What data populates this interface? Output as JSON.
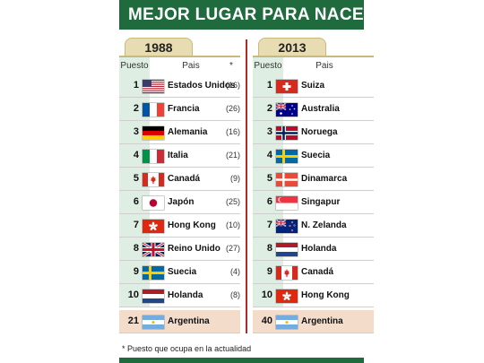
{
  "title": "MEJOR LUGAR PARA NACER",
  "columns": {
    "rank": "Puesto",
    "country": "Pais",
    "current": "*"
  },
  "panels": [
    {
      "year": "1988",
      "rows": [
        {
          "rank": "1",
          "country": "Estados Unidos",
          "current": "(16)",
          "flag": "usa-flag-icon"
        },
        {
          "rank": "2",
          "country": "Francia",
          "current": "(26)",
          "flag": "france-flag-icon"
        },
        {
          "rank": "3",
          "country": "Alemania",
          "current": "(16)",
          "flag": "germany-flag-icon"
        },
        {
          "rank": "4",
          "country": "Italia",
          "current": "(21)",
          "flag": "italy-flag-icon"
        },
        {
          "rank": "5",
          "country": "Canadá",
          "current": "(9)",
          "flag": "canada-flag-icon"
        },
        {
          "rank": "6",
          "country": "Japón",
          "current": "(25)",
          "flag": "japan-flag-icon"
        },
        {
          "rank": "7",
          "country": "Hong Kong",
          "current": "(10)",
          "flag": "hong-kong-flag-icon"
        },
        {
          "rank": "8",
          "country": "Reino Unido",
          "current": "(27)",
          "flag": "uk-flag-icon"
        },
        {
          "rank": "9",
          "country": "Suecia",
          "current": "(4)",
          "flag": "sweden-flag-icon"
        },
        {
          "rank": "10",
          "country": "Holanda",
          "current": "(8)",
          "flag": "netherlands-flag-icon"
        }
      ],
      "argentina": {
        "rank": "21",
        "country": "Argentina",
        "flag": "argentina-flag-icon"
      }
    },
    {
      "year": "2013",
      "rows": [
        {
          "rank": "1",
          "country": "Suiza",
          "flag": "switzerland-flag-icon"
        },
        {
          "rank": "2",
          "country": "Australia",
          "flag": "australia-flag-icon"
        },
        {
          "rank": "3",
          "country": "Noruega",
          "flag": "norway-flag-icon"
        },
        {
          "rank": "4",
          "country": "Suecia",
          "flag": "sweden-flag-icon"
        },
        {
          "rank": "5",
          "country": "Dinamarca",
          "flag": "denmark-flag-icon"
        },
        {
          "rank": "6",
          "country": "Singapur",
          "flag": "singapore-flag-icon"
        },
        {
          "rank": "7",
          "country": "N. Zelanda",
          "flag": "new-zealand-flag-icon"
        },
        {
          "rank": "8",
          "country": "Holanda",
          "flag": "netherlands-flag-icon"
        },
        {
          "rank": "9",
          "country": "Canadá",
          "flag": "canada-flag-icon"
        },
        {
          "rank": "10",
          "country": "Hong Kong",
          "flag": "hong-kong-flag-icon"
        }
      ],
      "argentina": {
        "rank": "40",
        "country": "Argentina",
        "flag": "argentina-flag-icon"
      }
    }
  ],
  "footnote": "* Puesto que ocupa en la actualidad",
  "colors": {
    "banner": "#1f6b3d",
    "divider": "#b02a2a",
    "rank_bg": "#dfeee2",
    "argentina_bg": "#f4dccb"
  }
}
